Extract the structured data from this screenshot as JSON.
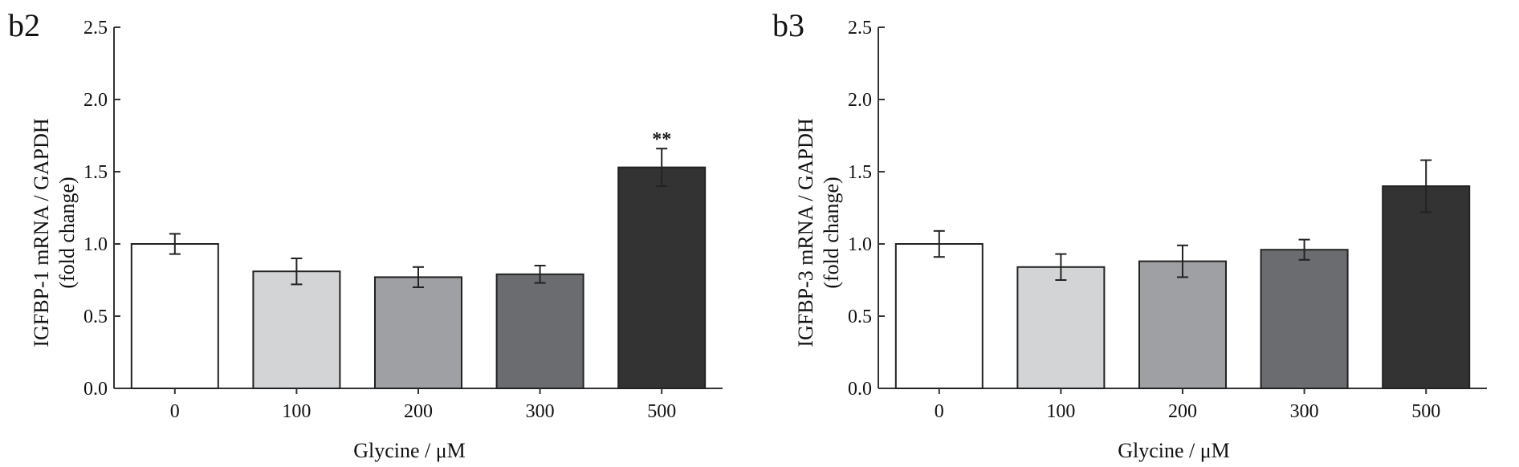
{
  "chart_data": [
    {
      "type": "bar",
      "panel": "b2",
      "categories": [
        "0",
        "100",
        "200",
        "300",
        "500"
      ],
      "series": [
        {
          "values": [
            1.0,
            0.81,
            0.77,
            0.79,
            1.53
          ],
          "errors": [
            0.07,
            0.09,
            0.07,
            0.06,
            0.13
          ]
        }
      ],
      "bar_colors": [
        "#ffffff",
        "#d3d4d6",
        "#9fa0a3",
        "#6b6c6f",
        "#333334"
      ],
      "annotations": [
        {
          "category": "500",
          "text": "**"
        }
      ],
      "ylabel_line1": "IGFBP-1 mRNA / GAPDH",
      "ylabel_line2": "(fold change)",
      "xlabel": "Glycine / μM",
      "ylim": [
        0,
        2.5
      ],
      "yticks": [
        "0.0",
        "0.5",
        "1.0",
        "1.5",
        "2.0",
        "2.5"
      ],
      "grid": false
    },
    {
      "type": "bar",
      "panel": "b3",
      "categories": [
        "0",
        "100",
        "200",
        "300",
        "500"
      ],
      "series": [
        {
          "values": [
            1.0,
            0.84,
            0.88,
            0.96,
            1.4
          ],
          "errors": [
            0.09,
            0.09,
            0.11,
            0.07,
            0.18
          ]
        }
      ],
      "bar_colors": [
        "#ffffff",
        "#d3d4d6",
        "#9fa0a3",
        "#6b6c6f",
        "#333334"
      ],
      "annotations": [],
      "ylabel_line1": "IGFBP-3 mRNA / GAPDH",
      "ylabel_line2": "(fold change)",
      "xlabel": "Glycine / μM",
      "ylim": [
        0,
        2.5
      ],
      "yticks": [
        "0.0",
        "0.5",
        "1.0",
        "1.5",
        "2.0",
        "2.5"
      ],
      "grid": false
    }
  ]
}
